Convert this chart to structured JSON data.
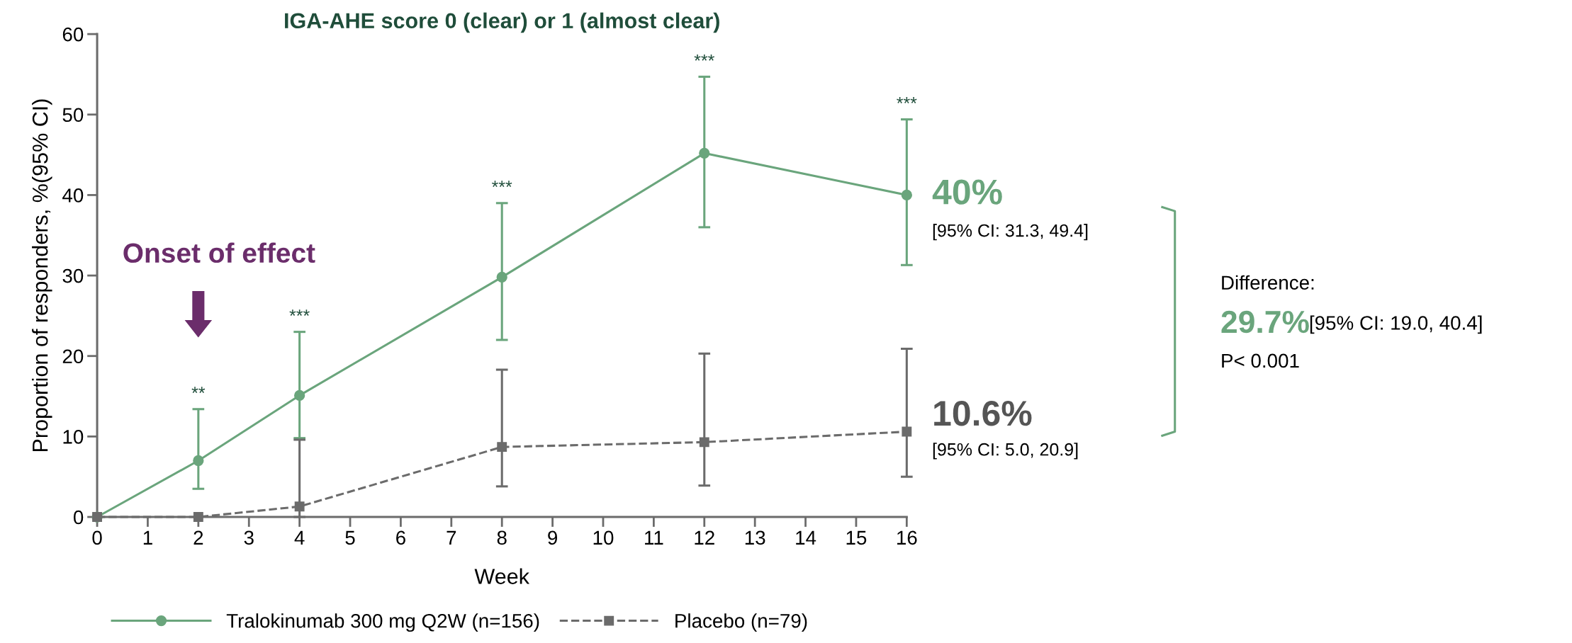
{
  "chart_data": {
    "type": "line",
    "title": "IGA-AHE score 0 (clear) or 1 (almost clear)",
    "xlabel": "Week",
    "ylabel": "Proportion of responders, %(95% CI)",
    "x": [
      0,
      2,
      4,
      8,
      12,
      16
    ],
    "series": [
      {
        "name": "Tralokinumab 300 mg Q2W (n=156)",
        "color": "#6aa57c",
        "marker": "circle",
        "line_style": "solid",
        "values": [
          0,
          7.0,
          15.1,
          29.8,
          45.2,
          40.0
        ],
        "errors": [
          null,
          [
            3.5,
            13.4
          ],
          [
            9.8,
            23.0
          ],
          [
            22.0,
            39.0
          ],
          [
            36.0,
            54.7
          ],
          [
            31.3,
            49.4
          ]
        ]
      },
      {
        "name": "Placebo (n=79)",
        "color": "#6b6b6b",
        "marker": "square",
        "line_style": "dashed",
        "values": [
          0,
          0,
          1.3,
          8.7,
          9.3,
          10.6
        ],
        "errors": [
          null,
          null,
          [
            0,
            9.6
          ],
          [
            3.8,
            18.3
          ],
          [
            3.9,
            20.3
          ],
          [
            5.0,
            20.9
          ]
        ]
      }
    ],
    "xlim": [
      0,
      16
    ],
    "xticks": [
      0,
      1,
      2,
      3,
      4,
      5,
      6,
      7,
      8,
      9,
      10,
      11,
      12,
      13,
      14,
      15,
      16
    ],
    "ylim": [
      0,
      60
    ],
    "yticks": [
      0,
      10,
      20,
      30,
      40,
      50,
      60
    ],
    "grid": false,
    "legend": "bottom",
    "annotations": [
      {
        "text": "**",
        "x": 2,
        "y": 13.4
      },
      {
        "text": "***",
        "x": 4,
        "y": 23.0
      },
      {
        "text": "***",
        "x": 8,
        "y": 39.0
      },
      {
        "text": "***",
        "x": 12,
        "y": 54.7
      },
      {
        "text": "***",
        "x": 16,
        "y": 49.4
      },
      "Onset of effect",
      "40%",
      "[95% CI: 31.3, 49.4]",
      "10.6%",
      "[95% CI: 5.0, 20.9]",
      "Difference:",
      "29.7%",
      "[95% CI: 19.0, 40.4]",
      "P< 0.001"
    ]
  }
}
